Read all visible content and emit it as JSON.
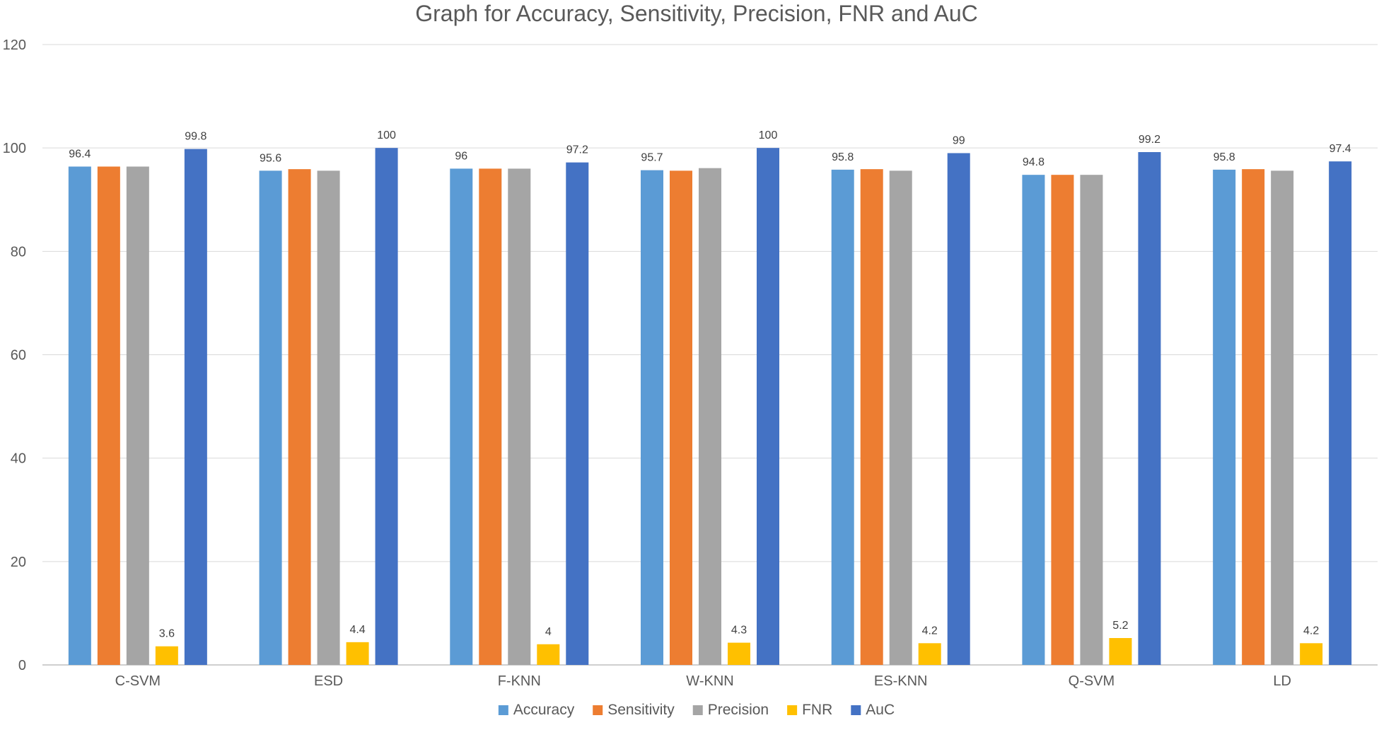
{
  "chart_data": {
    "type": "bar",
    "title": "Graph for Accuracy, Sensitivity, Precision, FNR and AuC",
    "xlabel": "",
    "ylabel": "",
    "ylim": [
      0,
      120
    ],
    "yticks": [
      0,
      20,
      40,
      60,
      80,
      100,
      120
    ],
    "grid": true,
    "legend_position": "bottom",
    "categories": [
      "C-SVM",
      "ESD",
      "F-KNN",
      "W-KNN",
      "ES-KNN",
      "Q-SVM",
      "LD"
    ],
    "series": [
      {
        "name": "Accuracy",
        "color": "#5B9BD5",
        "values": [
          96.4,
          95.6,
          96,
          95.7,
          95.8,
          94.8,
          95.8
        ],
        "show_labels": true
      },
      {
        "name": "Sensitivity",
        "color": "#ED7D31",
        "values": [
          96.4,
          95.9,
          96,
          95.6,
          95.9,
          94.8,
          95.9
        ],
        "show_labels": false
      },
      {
        "name": "Precision",
        "color": "#A5A5A5",
        "values": [
          96.4,
          95.6,
          96,
          96.1,
          95.6,
          94.8,
          95.6
        ],
        "show_labels": false
      },
      {
        "name": "FNR",
        "color": "#FFC000",
        "values": [
          3.6,
          4.4,
          4,
          4.3,
          4.2,
          5.2,
          4.2
        ],
        "show_labels": true
      },
      {
        "name": "AuC",
        "color": "#4472C4",
        "values": [
          99.8,
          100,
          97.2,
          100,
          99,
          99.2,
          97.4
        ],
        "show_labels": true
      }
    ]
  }
}
